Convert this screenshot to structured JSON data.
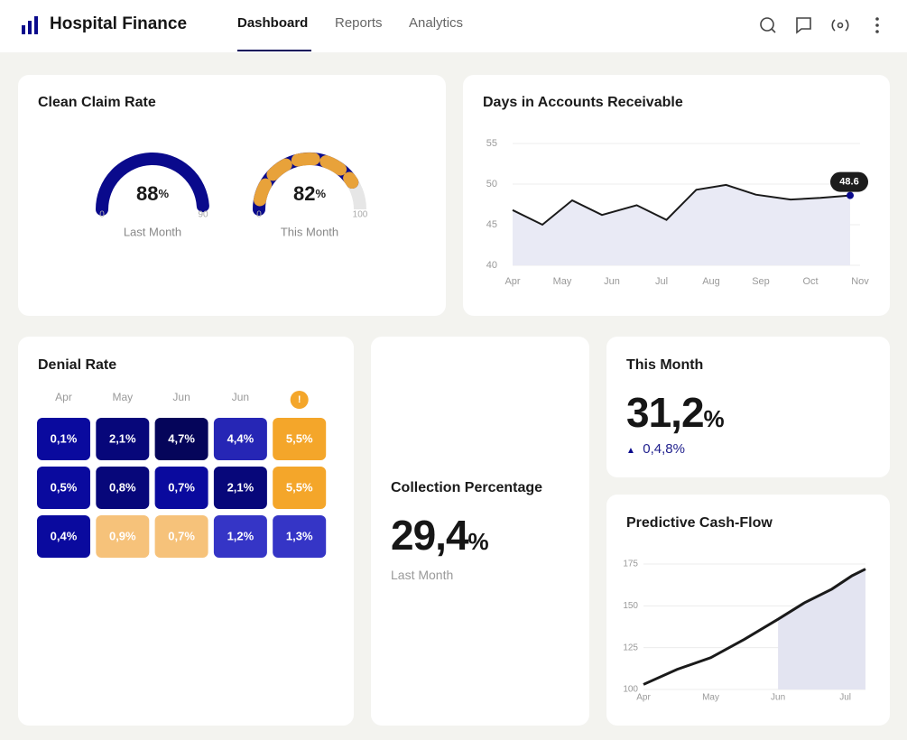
{
  "header": {
    "title": "Hospital Finance",
    "nav": [
      "Dashboard",
      "Reports",
      "Analytics"
    ],
    "active_nav": 0
  },
  "clean_claim_rate": {
    "title": "Clean Claim Rate",
    "gauges": [
      {
        "value": 88,
        "unit": "%",
        "min": 0,
        "max": 90,
        "label": "Last Month",
        "color": "#0a0a8c",
        "accent": null
      },
      {
        "value": 82,
        "unit": "%",
        "min": 0,
        "max": 100,
        "label": "This Month",
        "color": "#0a0a8c",
        "accent": "#e8a23a"
      }
    ]
  },
  "chart_data": [
    {
      "type": "line",
      "title": "Days in Accounts Receivable",
      "x": [
        0,
        0.6,
        1.2,
        1.8,
        2.5,
        3.1,
        3.7,
        4.3,
        4.9,
        5.6,
        6.2,
        6.8
      ],
      "values": [
        46.8,
        45.0,
        48.0,
        46.2,
        47.4,
        45.6,
        49.3,
        49.9,
        48.7,
        48.1,
        48.3,
        48.6
      ],
      "xlim": [
        0,
        7
      ],
      "xticks": [
        {
          "value": 0,
          "label": "Apr"
        },
        {
          "value": 1,
          "label": "May"
        },
        {
          "value": 2,
          "label": "Jun"
        },
        {
          "value": 3,
          "label": "Jul"
        },
        {
          "value": 4,
          "label": "Aug"
        },
        {
          "value": 5,
          "label": "Sep"
        },
        {
          "value": 6,
          "label": "Oct"
        },
        {
          "value": 7,
          "label": "Nov"
        }
      ],
      "ylim": [
        40,
        55
      ],
      "yticks": [
        40,
        45,
        50,
        55
      ],
      "grid": true,
      "color": "#1a1a1a",
      "fill": "#e9eaf5",
      "point_color": "#0a0a8c",
      "shaded_from": 0
    },
    {
      "type": "line",
      "title": "Predictive Cash-Flow",
      "x": [
        0,
        0.5,
        1,
        1.5,
        2,
        2.4,
        2.8,
        3.1,
        3.3
      ],
      "values": [
        103,
        112,
        119,
        130,
        142,
        152,
        160,
        168,
        172
      ],
      "xlim": [
        0,
        3.3
      ],
      "xticks": [
        {
          "value": 0,
          "label": "Apr"
        },
        {
          "value": 1,
          "label": "May"
        },
        {
          "value": 2,
          "label": "Jun"
        },
        {
          "value": 3,
          "label": "Jul"
        }
      ],
      "ylim": [
        100,
        175
      ],
      "yticks": [
        100,
        125,
        150,
        175
      ],
      "grid": true,
      "color": "#1a1a1a",
      "fill": "#e3e4f1",
      "point_color": null,
      "shaded_from": 2
    }
  ],
  "denial_rate": {
    "title": "Denial Rate",
    "columns": [
      "Apr",
      "May",
      "Jun",
      "Jun",
      "!"
    ],
    "cells": [
      [
        "0,1%",
        "2,1%",
        "4,7%",
        "4,4%",
        "5,5%"
      ],
      [
        "0,5%",
        "0,8%",
        "0,7%",
        "2,1%",
        "5,5%"
      ],
      [
        "0,4%",
        "0,9%",
        "0,7%",
        "1,2%",
        "1,3%"
      ]
    ],
    "colors": [
      [
        "#0a0a9e",
        "#07077a",
        "#05055a",
        "#2626b5",
        "#f4a62a"
      ],
      [
        "#0a0a9e",
        "#07077a",
        "#0a0a9e",
        "#07077a",
        "#f4a62a"
      ],
      [
        "#0a0a9e",
        "#f6c27a",
        "#f6c27a",
        "#3535c6",
        "#3535c6"
      ]
    ]
  },
  "collection": {
    "title": "Collection Percentage",
    "value": "29,4",
    "unit": "%",
    "label": "Last Month"
  },
  "this_month": {
    "title": "This Month",
    "value": "31,2",
    "unit": "%",
    "change": "0,4,8%"
  }
}
